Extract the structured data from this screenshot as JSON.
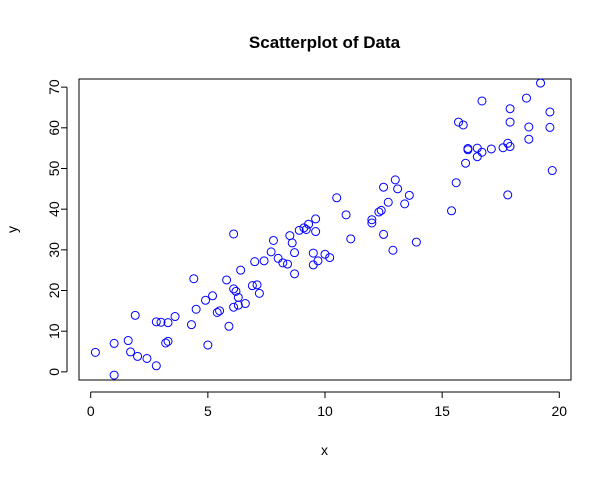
{
  "chart_data": {
    "type": "scatter",
    "title": "Scatterplot of Data",
    "xlabel": "x",
    "ylabel": "y",
    "xlim": [
      -0.5,
      20.5
    ],
    "ylim": [
      -2,
      72
    ],
    "xticks": [
      0,
      5,
      10,
      15,
      20
    ],
    "yticks": [
      0,
      10,
      20,
      30,
      40,
      50,
      60,
      70
    ],
    "grid": false,
    "point_color": "#0000ff",
    "marker": "open-circle",
    "points": [
      [
        0.2,
        4.8
      ],
      [
        1.0,
        7.0
      ],
      [
        1.0,
        -0.8
      ],
      [
        1.6,
        7.7
      ],
      [
        1.7,
        4.9
      ],
      [
        1.9,
        13.9
      ],
      [
        2.0,
        3.8
      ],
      [
        2.4,
        3.3
      ],
      [
        2.8,
        12.3
      ],
      [
        2.8,
        1.5
      ],
      [
        3.0,
        12.2
      ],
      [
        3.2,
        7.1
      ],
      [
        3.3,
        7.5
      ],
      [
        3.3,
        12.1
      ],
      [
        3.6,
        13.6
      ],
      [
        4.3,
        11.6
      ],
      [
        4.4,
        22.9
      ],
      [
        4.5,
        15.4
      ],
      [
        4.9,
        17.6
      ],
      [
        5.0,
        6.6
      ],
      [
        5.2,
        18.7
      ],
      [
        5.4,
        14.6
      ],
      [
        5.5,
        15.0
      ],
      [
        5.8,
        22.6
      ],
      [
        5.9,
        11.2
      ],
      [
        6.1,
        33.9
      ],
      [
        6.1,
        20.4
      ],
      [
        6.1,
        15.9
      ],
      [
        6.2,
        19.8
      ],
      [
        6.3,
        16.4
      ],
      [
        6.3,
        18.3
      ],
      [
        6.4,
        25.0
      ],
      [
        6.6,
        16.8
      ],
      [
        6.9,
        21.2
      ],
      [
        7.0,
        27.1
      ],
      [
        7.1,
        21.4
      ],
      [
        7.2,
        19.3
      ],
      [
        7.4,
        27.3
      ],
      [
        7.7,
        29.5
      ],
      [
        7.8,
        32.3
      ],
      [
        8.0,
        27.9
      ],
      [
        8.2,
        26.8
      ],
      [
        8.4,
        26.5
      ],
      [
        8.5,
        33.5
      ],
      [
        8.6,
        31.7
      ],
      [
        8.7,
        29.3
      ],
      [
        8.7,
        24.1
      ],
      [
        8.9,
        34.8
      ],
      [
        9.1,
        35.4
      ],
      [
        9.2,
        35.0
      ],
      [
        9.3,
        36.3
      ],
      [
        9.5,
        29.2
      ],
      [
        9.5,
        26.3
      ],
      [
        9.6,
        37.6
      ],
      [
        9.6,
        34.5
      ],
      [
        9.7,
        27.3
      ],
      [
        10.0,
        28.9
      ],
      [
        10.2,
        28.1
      ],
      [
        10.5,
        42.8
      ],
      [
        10.9,
        38.6
      ],
      [
        11.1,
        32.7
      ],
      [
        12.0,
        36.6
      ],
      [
        12.0,
        37.4
      ],
      [
        12.3,
        39.3
      ],
      [
        12.4,
        39.7
      ],
      [
        12.5,
        45.4
      ],
      [
        12.5,
        33.8
      ],
      [
        12.7,
        41.7
      ],
      [
        12.9,
        29.9
      ],
      [
        13.0,
        47.2
      ],
      [
        13.1,
        45.0
      ],
      [
        13.4,
        41.3
      ],
      [
        13.6,
        43.4
      ],
      [
        13.9,
        31.9
      ],
      [
        15.4,
        39.6
      ],
      [
        15.6,
        46.5
      ],
      [
        15.7,
        61.4
      ],
      [
        15.9,
        60.7
      ],
      [
        16.0,
        51.3
      ],
      [
        16.1,
        54.9
      ],
      [
        16.1,
        54.6
      ],
      [
        16.5,
        55.0
      ],
      [
        16.5,
        52.9
      ],
      [
        16.7,
        66.6
      ],
      [
        16.7,
        54.0
      ],
      [
        17.1,
        54.8
      ],
      [
        17.6,
        55.1
      ],
      [
        17.8,
        43.5
      ],
      [
        17.8,
        56.2
      ],
      [
        17.9,
        64.7
      ],
      [
        17.9,
        61.4
      ],
      [
        17.9,
        55.4
      ],
      [
        18.6,
        67.3
      ],
      [
        18.7,
        60.2
      ],
      [
        18.7,
        57.2
      ],
      [
        19.2,
        71.0
      ],
      [
        19.6,
        63.9
      ],
      [
        19.6,
        60.1
      ],
      [
        19.7,
        49.5
      ]
    ]
  }
}
